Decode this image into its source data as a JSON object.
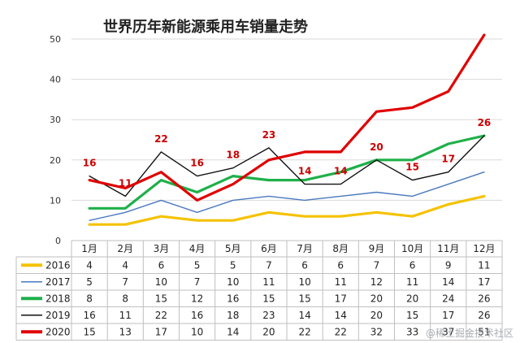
{
  "chart_data": {
    "type": "line",
    "title": "世界历年新能源乘用车销量走势",
    "categories": [
      "1月",
      "2月",
      "3月",
      "4月",
      "5月",
      "6月",
      "7月",
      "8月",
      "9月",
      "10月",
      "11月",
      "12月"
    ],
    "ylim": [
      0,
      50
    ],
    "yticks": [
      0,
      10,
      20,
      30,
      40,
      50
    ],
    "grid": true,
    "legend": "table-bottom-left",
    "series": [
      {
        "name": "2016",
        "color": "#f5c200",
        "values": [
          4,
          4,
          6,
          5,
          5,
          7,
          6,
          6,
          7,
          6,
          9,
          11
        ]
      },
      {
        "name": "2017",
        "color": "#4a78be",
        "values": [
          5,
          7,
          10,
          7,
          10,
          11,
          10,
          11,
          12,
          11,
          14,
          17
        ]
      },
      {
        "name": "2018",
        "color": "#1fb04a",
        "values": [
          8,
          8,
          15,
          12,
          16,
          15,
          15,
          17,
          20,
          20,
          24,
          26
        ]
      },
      {
        "name": "2019",
        "color": "#111111",
        "values": [
          16,
          11,
          22,
          16,
          18,
          23,
          14,
          14,
          20,
          15,
          17,
          26
        ]
      },
      {
        "name": "2020",
        "color": "#e00000",
        "values": [
          15,
          13,
          17,
          10,
          14,
          20,
          22,
          22,
          32,
          33,
          37,
          51
        ]
      }
    ],
    "annotations": [
      {
        "series": "2019",
        "index": 0,
        "text": "16"
      },
      {
        "series": "2019",
        "index": 1,
        "text": "11"
      },
      {
        "series": "2019",
        "index": 2,
        "text": "22"
      },
      {
        "series": "2019",
        "index": 3,
        "text": "16"
      },
      {
        "series": "2019",
        "index": 4,
        "text": "18"
      },
      {
        "series": "2019",
        "index": 5,
        "text": "23"
      },
      {
        "series": "2019",
        "index": 6,
        "text": "14"
      },
      {
        "series": "2019",
        "index": 7,
        "text": "14"
      },
      {
        "series": "2019",
        "index": 8,
        "text": "20"
      },
      {
        "series": "2019",
        "index": 9,
        "text": "15"
      },
      {
        "series": "2019",
        "index": 10,
        "text": "17"
      },
      {
        "series": "2019",
        "index": 11,
        "text": "26"
      }
    ],
    "annotation_color": "#cc0000"
  },
  "watermark": "@稀土掘金技术社区"
}
